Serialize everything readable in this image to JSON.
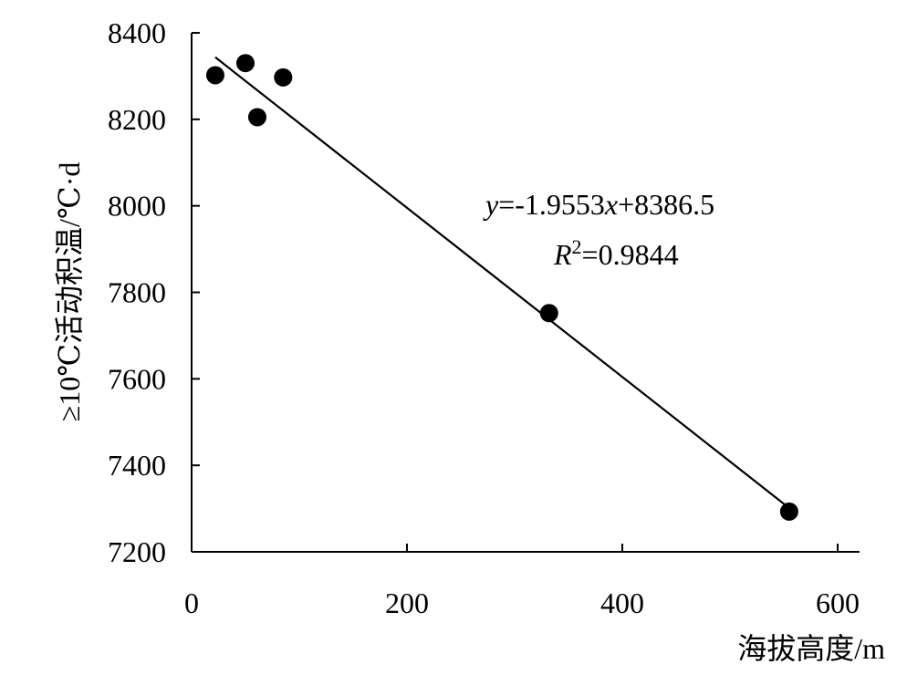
{
  "chart_data": {
    "type": "scatter",
    "xlabel": "海拔高度/m",
    "ylabel": "≥10℃活动积温/℃·d",
    "xlim": [
      0,
      620
    ],
    "ylim": [
      7200,
      8400
    ],
    "x_ticks": [
      0,
      200,
      400,
      600
    ],
    "y_ticks": [
      7200,
      7400,
      7600,
      7800,
      8000,
      8200,
      8400
    ],
    "x_tick_labels": [
      "0",
      "200",
      "400",
      "600"
    ],
    "y_tick_labels": [
      "7200",
      "7400",
      "7600",
      "7800",
      "8000",
      "8200",
      "8400"
    ],
    "grid": false,
    "points": [
      {
        "x": 22,
        "y": 8302
      },
      {
        "x": 50,
        "y": 8330
      },
      {
        "x": 61,
        "y": 8205
      },
      {
        "x": 85,
        "y": 8297
      },
      {
        "x": 332,
        "y": 7752
      },
      {
        "x": 555,
        "y": 7293
      }
    ],
    "trendline": {
      "slope": -1.9553,
      "intercept": 8386.5,
      "x_range": [
        22,
        555
      ]
    },
    "annotations": {
      "equation": {
        "y_var": "y",
        "eq_part1": "=-1.9553",
        "x_var": "x",
        "eq_part2": "+8386.5"
      },
      "r2": {
        "r_var": "R",
        "sup": "2",
        "value_part": "=0.9844"
      }
    }
  }
}
